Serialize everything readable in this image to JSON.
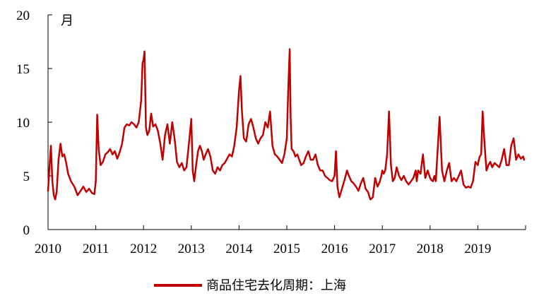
{
  "chart_data": {
    "type": "line",
    "title": "",
    "xlabel": "",
    "ylabel": "月",
    "xlim": [
      2010,
      2020
    ],
    "ylim": [
      0,
      20
    ],
    "x_ticks": [
      "2010",
      "2011",
      "2012",
      "2013",
      "2014",
      "2015",
      "2016",
      "2017",
      "2018",
      "2019"
    ],
    "y_ticks": [
      "0",
      "5",
      "10",
      "15",
      "20"
    ],
    "grid": false,
    "legend_position": "bottom",
    "series": [
      {
        "name": "商品住宅去化周期：上海",
        "color": "#c00000",
        "x": [
          2010.0,
          2010.03,
          2010.06,
          2010.09,
          2010.12,
          2010.15,
          2010.18,
          2010.22,
          2010.26,
          2010.3,
          2010.34,
          2010.38,
          2010.42,
          2010.48,
          2010.55,
          2010.62,
          2010.68,
          2010.74,
          2010.8,
          2010.86,
          2010.92,
          2010.97,
          2011.0,
          2011.03,
          2011.06,
          2011.1,
          2011.15,
          2011.2,
          2011.25,
          2011.3,
          2011.35,
          2011.4,
          2011.45,
          2011.5,
          2011.55,
          2011.6,
          2011.65,
          2011.7,
          2011.75,
          2011.8,
          2011.85,
          2011.9,
          2011.95,
          2011.98,
          2012.0,
          2012.02,
          2012.05,
          2012.08,
          2012.12,
          2012.16,
          2012.2,
          2012.25,
          2012.3,
          2012.35,
          2012.4,
          2012.45,
          2012.5,
          2012.55,
          2012.6,
          2012.65,
          2012.7,
          2012.75,
          2012.8,
          2012.85,
          2012.9,
          2012.95,
          2013.0,
          2013.03,
          2013.06,
          2013.1,
          2013.14,
          2013.18,
          2013.22,
          2013.26,
          2013.3,
          2013.35,
          2013.4,
          2013.45,
          2013.5,
          2013.55,
          2013.6,
          2013.65,
          2013.7,
          2013.75,
          2013.8,
          2013.85,
          2013.9,
          2013.95,
          2014.0,
          2014.03,
          2014.06,
          2014.1,
          2014.15,
          2014.2,
          2014.25,
          2014.3,
          2014.35,
          2014.4,
          2014.45,
          2014.5,
          2014.55,
          2014.6,
          2014.65,
          2014.7,
          2014.75,
          2014.8,
          2014.85,
          2014.9,
          2014.95,
          2015.0,
          2015.03,
          2015.06,
          2015.08,
          2015.1,
          2015.14,
          2015.18,
          2015.22,
          2015.26,
          2015.3,
          2015.35,
          2015.4,
          2015.45,
          2015.5,
          2015.55,
          2015.6,
          2015.65,
          2015.7,
          2015.75,
          2015.8,
          2015.85,
          2015.9,
          2015.95,
          2016.0,
          2016.03,
          2016.06,
          2016.1,
          2016.14,
          2016.18,
          2016.22,
          2016.26,
          2016.3,
          2016.35,
          2016.4,
          2016.45,
          2016.5,
          2016.55,
          2016.6,
          2016.65,
          2016.7,
          2016.75,
          2016.8,
          2016.85,
          2016.9,
          2016.95,
          2016.98,
          2017.0,
          2017.03,
          2017.06,
          2017.1,
          2017.14,
          2017.18,
          2017.22,
          2017.26,
          2017.3,
          2017.35,
          2017.4,
          2017.45,
          2017.5,
          2017.55,
          2017.6,
          2017.65,
          2017.7,
          2017.72,
          2017.75,
          2017.8,
          2017.85,
          2017.9,
          2017.95,
          2018.0,
          2018.03,
          2018.06,
          2018.09,
          2018.12,
          2018.16,
          2018.2,
          2018.25,
          2018.3,
          2018.35,
          2018.4,
          2018.45,
          2018.5,
          2018.55,
          2018.6,
          2018.65,
          2018.7,
          2018.75,
          2018.8,
          2018.85,
          2018.9,
          2018.95,
          2019.0,
          2019.02,
          2019.04,
          2019.07,
          2019.1,
          2019.14,
          2019.18,
          2019.22,
          2019.26,
          2019.3,
          2019.35,
          2019.4,
          2019.45,
          2019.5,
          2019.55,
          2019.6,
          2019.65,
          2019.7,
          2019.75,
          2019.8,
          2019.85,
          2019.9,
          2019.95,
          2019.97
        ],
        "values": [
          3.6,
          5.8,
          7.8,
          4.5,
          3.2,
          2.8,
          3.5,
          6.5,
          8.0,
          6.8,
          7.0,
          6.2,
          5.2,
          4.5,
          4.0,
          3.2,
          3.6,
          4.0,
          3.5,
          3.8,
          3.4,
          3.3,
          4.5,
          10.7,
          7.5,
          6.0,
          6.3,
          7.0,
          7.2,
          7.5,
          7.0,
          7.3,
          6.6,
          7.2,
          8.0,
          9.5,
          9.8,
          9.7,
          10.0,
          9.8,
          9.5,
          10.0,
          12.0,
          15.5,
          15.8,
          16.6,
          9.5,
          8.8,
          9.2,
          10.8,
          9.6,
          9.8,
          9.2,
          8.0,
          6.5,
          8.8,
          9.8,
          8.0,
          10.0,
          8.5,
          6.3,
          5.8,
          6.2,
          5.5,
          5.8,
          8.0,
          10.3,
          5.5,
          4.5,
          6.0,
          7.3,
          7.8,
          7.3,
          6.5,
          7.0,
          7.5,
          6.8,
          5.5,
          5.2,
          5.8,
          5.5,
          6.0,
          6.2,
          6.6,
          7.0,
          6.8,
          7.8,
          9.5,
          13.0,
          14.3,
          11.0,
          8.5,
          8.2,
          9.8,
          10.3,
          9.5,
          8.5,
          8.0,
          8.5,
          8.8,
          10.0,
          9.5,
          11.0,
          7.8,
          7.0,
          6.8,
          6.5,
          6.2,
          7.0,
          8.5,
          13.0,
          16.8,
          10.5,
          7.5,
          7.3,
          6.8,
          7.0,
          6.5,
          6.0,
          6.2,
          6.8,
          7.3,
          6.5,
          6.5,
          7.0,
          6.0,
          5.5,
          5.5,
          5.0,
          4.8,
          4.6,
          4.5,
          5.0,
          7.3,
          4.0,
          3.0,
          3.6,
          4.2,
          4.8,
          5.5,
          5.0,
          4.5,
          4.3,
          4.0,
          3.6,
          4.3,
          4.8,
          3.8,
          3.5,
          2.8,
          3.0,
          4.8,
          4.0,
          4.5,
          5.0,
          5.5,
          5.2,
          5.5,
          7.0,
          11.0,
          6.0,
          4.5,
          4.8,
          5.8,
          5.0,
          4.6,
          5.0,
          4.5,
          4.2,
          4.5,
          4.8,
          5.5,
          4.5,
          5.5,
          5.2,
          7.0,
          4.8,
          5.5,
          4.8,
          4.6,
          4.5,
          5.0,
          4.5,
          7.5,
          10.5,
          5.5,
          4.5,
          5.5,
          6.2,
          4.5,
          4.8,
          4.5,
          5.0,
          5.5,
          4.2,
          3.9,
          4.0,
          3.9,
          4.5,
          6.3,
          6.0,
          6.5,
          6.8,
          7.0,
          11.0,
          8.0,
          5.5,
          6.0,
          6.3,
          5.8,
          6.2,
          6.0,
          5.8,
          6.5,
          7.5,
          6.0,
          6.0,
          7.8,
          8.5,
          6.5,
          7.0,
          6.6,
          6.8,
          6.5
        ]
      }
    ]
  }
}
